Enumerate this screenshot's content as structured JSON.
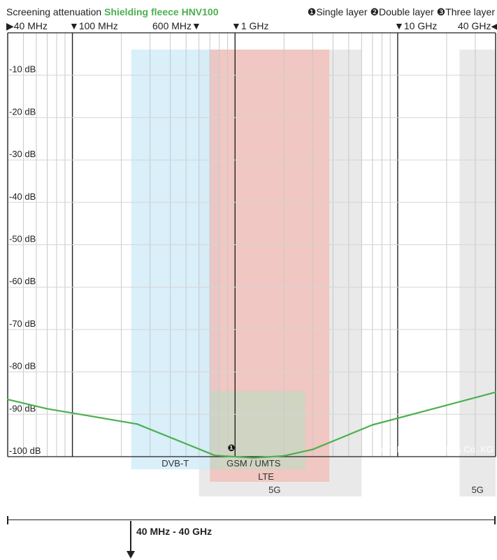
{
  "header": {
    "title_prefix": "Screening attenuation",
    "product_name": "Shielding fleece HNV100",
    "legend": [
      "❶Single layer",
      "❷Double layer",
      "❸Three layer"
    ]
  },
  "frequency_markers": {
    "f40mhz": "▶40 MHz",
    "f100mhz": "▼100 MHz",
    "f600mhz": "600 MHz▼",
    "f1ghz": "▼1 GHz",
    "f10ghz": "▼10 GHz",
    "f40ghz": "40 GHz◀"
  },
  "chart_data": {
    "type": "line",
    "title": "Screening attenuation Shielding fleece HNV100",
    "xscale": "log",
    "xunit": "MHz",
    "xlim": [
      40,
      40000
    ],
    "ylim": [
      -100,
      0
    ],
    "y_tick_labels": [
      "-10 dB",
      "-20 dB",
      "-30 dB",
      "-40 dB",
      "-50 dB",
      "-60 dB",
      "-70 dB",
      "-80 dB",
      "-90 dB",
      "-100 dB"
    ],
    "grid": true,
    "series": [
      {
        "name": "❶Single layer",
        "marker_label": "❶",
        "color": "#4caf50",
        "points": [
          {
            "x": 40,
            "y": -86.5
          },
          {
            "x": 70,
            "y": -88.7
          },
          {
            "x": 250,
            "y": -92.3
          },
          {
            "x": 750,
            "y": -99.7
          },
          {
            "x": 1300,
            "y": -100.3
          },
          {
            "x": 2000,
            "y": -99.8
          },
          {
            "x": 3000,
            "y": -98.3
          },
          {
            "x": 7000,
            "y": -92.5
          },
          {
            "x": 40000,
            "y": -84.8
          }
        ]
      }
    ],
    "bands": [
      {
        "label": "DVB-T",
        "from": 230,
        "to": 800,
        "color": "#d2ecf8"
      },
      {
        "label": "GSM / UMTS",
        "from": 700,
        "to": 2700,
        "color": "#b7dec5"
      },
      {
        "label": "LTE",
        "from": 700,
        "to": 3800,
        "color": "#f2b8b0"
      },
      {
        "label": "5G",
        "from": 600,
        "to": 6000,
        "color": "#e1e1e1"
      },
      {
        "label": "5G",
        "from": 24000,
        "to": 40000,
        "color": "#e4e4e4"
      }
    ],
    "watermark": "© YSHIELD GmbH & Co. KG"
  },
  "range": {
    "label": "40 MHz - 40 GHz"
  }
}
